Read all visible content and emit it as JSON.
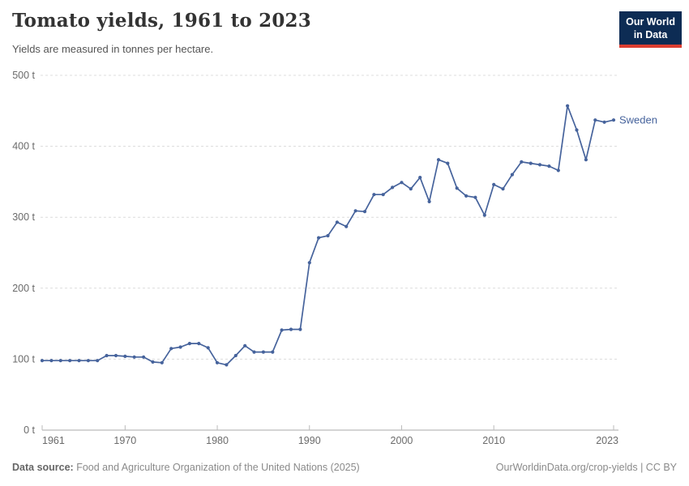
{
  "header": {
    "title": "Tomato yields, 1961 to 2023",
    "subtitle": "Yields are measured in tonnes per hectare.",
    "logo": {
      "line1": "Our World",
      "line2": "in Data",
      "bg_color": "#0d2c54",
      "accent_color": "#dc3e31"
    }
  },
  "chart_data": {
    "type": "line",
    "title": "Tomato yields, 1961 to 2023",
    "unit": "tonnes per hectare",
    "grid": "horizontal-dashed",
    "legend_position": "end-of-line",
    "xlim": [
      1961,
      2023
    ],
    "ylim": [
      0,
      500
    ],
    "xticks": [
      1961,
      1970,
      1980,
      1990,
      2000,
      2010,
      2023
    ],
    "yticks": [
      0,
      100,
      200,
      300,
      400,
      500
    ],
    "ytick_suffix": " t",
    "series": [
      {
        "name": "Sweden",
        "color": "#46639c",
        "x": [
          1961,
          1962,
          1963,
          1964,
          1965,
          1966,
          1967,
          1968,
          1969,
          1970,
          1971,
          1972,
          1973,
          1974,
          1975,
          1976,
          1977,
          1978,
          1979,
          1980,
          1981,
          1982,
          1983,
          1984,
          1985,
          1986,
          1987,
          1988,
          1989,
          1990,
          1991,
          1992,
          1993,
          1994,
          1995,
          1996,
          1997,
          1998,
          1999,
          2000,
          2001,
          2002,
          2003,
          2004,
          2005,
          2006,
          2007,
          2008,
          2009,
          2010,
          2011,
          2012,
          2013,
          2014,
          2015,
          2016,
          2017,
          2018,
          2019,
          2020,
          2021,
          2022,
          2023
        ],
        "values": [
          98,
          98,
          98,
          98,
          98,
          98,
          98,
          105,
          105,
          104,
          103,
          103,
          96,
          95,
          115,
          117,
          122,
          122,
          116,
          95,
          92,
          105,
          119,
          110,
          110,
          110,
          141,
          142,
          142,
          236,
          271,
          274,
          293,
          287,
          309,
          308,
          332,
          332,
          342,
          349,
          340,
          356,
          322,
          381,
          376,
          341,
          330,
          328,
          303,
          346,
          340,
          360,
          378,
          376,
          374,
          372,
          366,
          457,
          423,
          381,
          437,
          434,
          437
        ]
      }
    ]
  },
  "footer": {
    "source_label": "Data source:",
    "source_text": " Food and Agriculture Organization of the United Nations (2025)",
    "right_text": "OurWorldinData.org/crop-yields | CC BY"
  }
}
